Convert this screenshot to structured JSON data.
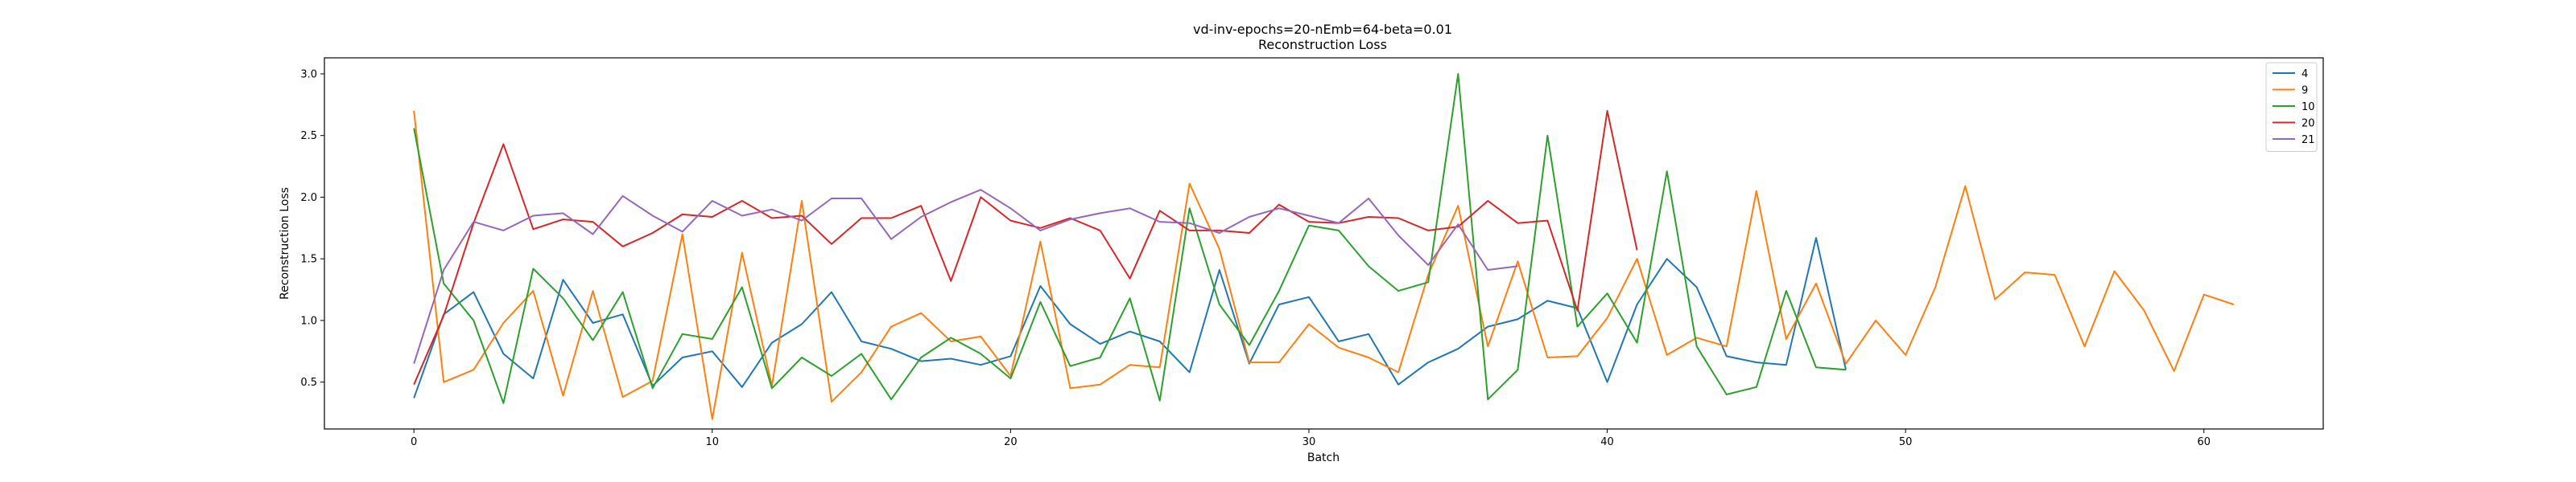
{
  "chart_data": {
    "type": "line",
    "title": "vd-inv-epochs=20-nEmb=64-beta=0.01",
    "subtitle": "Reconstruction Loss",
    "xlabel": "Batch",
    "ylabel": "Reconstruction Loss",
    "xlim": [
      -3,
      64
    ],
    "ylim": [
      0.12,
      3.13
    ],
    "xticks": [
      0,
      10,
      20,
      30,
      40,
      50,
      60
    ],
    "yticks": [
      0.5,
      1.0,
      1.5,
      2.0,
      2.5,
      3.0
    ],
    "ytick_labels": [
      "0.5",
      "1.0",
      "1.5",
      "2.0",
      "2.5",
      "3.0"
    ],
    "grid": false,
    "legend_position": "top-right",
    "series": [
      {
        "name": "4",
        "color": "#1f77b4",
        "x": [
          0,
          1,
          2,
          3,
          4,
          5,
          6,
          7,
          8,
          9,
          10,
          11,
          12,
          13,
          14,
          15,
          16,
          17,
          18,
          19,
          20,
          21,
          22,
          23,
          24,
          25,
          26,
          27,
          28,
          29,
          30,
          31,
          32,
          33,
          34,
          35,
          36,
          37,
          38,
          39,
          40,
          41,
          42,
          43,
          44,
          45,
          46,
          47,
          48
        ],
        "y": [
          0.37,
          1.05,
          1.23,
          0.73,
          0.53,
          1.33,
          0.98,
          1.05,
          0.47,
          0.7,
          0.75,
          0.46,
          0.82,
          0.97,
          1.23,
          0.83,
          0.77,
          0.67,
          0.69,
          0.64,
          0.71,
          1.28,
          0.97,
          0.81,
          0.91,
          0.83,
          0.58,
          1.41,
          0.65,
          1.13,
          1.19,
          0.83,
          0.89,
          0.48,
          0.66,
          0.77,
          0.95,
          1.01,
          1.16,
          1.1,
          0.5,
          1.13,
          1.5,
          1.27,
          0.71,
          0.66,
          0.64,
          1.67,
          0.6
        ]
      },
      {
        "name": "9",
        "color": "#ff7f0e",
        "x": [
          0,
          1,
          2,
          3,
          4,
          5,
          6,
          7,
          8,
          9,
          10,
          11,
          12,
          13,
          14,
          15,
          16,
          17,
          18,
          19,
          20,
          21,
          22,
          23,
          24,
          25,
          26,
          27,
          28,
          29,
          30,
          31,
          32,
          33,
          34,
          35,
          36,
          37,
          38,
          39,
          40,
          41,
          42,
          43,
          44,
          45,
          46,
          47,
          48,
          49,
          50,
          51,
          52,
          53,
          54,
          55,
          56,
          57,
          58,
          59,
          60,
          61
        ],
        "y": [
          2.7,
          0.5,
          0.6,
          0.98,
          1.24,
          0.39,
          1.24,
          0.38,
          0.51,
          1.7,
          0.2,
          1.55,
          0.47,
          1.97,
          0.34,
          0.58,
          0.95,
          1.06,
          0.83,
          0.87,
          0.55,
          1.64,
          0.45,
          0.48,
          0.64,
          0.62,
          2.11,
          1.58,
          0.66,
          0.66,
          0.97,
          0.78,
          0.7,
          0.58,
          1.37,
          1.93,
          0.79,
          1.48,
          0.7,
          0.71,
          1.02,
          1.5,
          0.72,
          0.86,
          0.79,
          2.05,
          0.85,
          1.3,
          0.65,
          1.0,
          0.72,
          1.27,
          2.09,
          1.17,
          1.39,
          1.37,
          0.79,
          1.4,
          1.08,
          0.59,
          1.21,
          1.13
        ]
      },
      {
        "name": "10",
        "color": "#2ca02c",
        "x": [
          0,
          1,
          2,
          3,
          4,
          5,
          6,
          7,
          8,
          9,
          10,
          11,
          12,
          13,
          14,
          15,
          16,
          17,
          18,
          19,
          20,
          21,
          22,
          23,
          24,
          25,
          26,
          27,
          28,
          29,
          30,
          31,
          32,
          33,
          34,
          35,
          36,
          37,
          38,
          39,
          40,
          41,
          42,
          43,
          44,
          45,
          46,
          47,
          48
        ],
        "y": [
          2.56,
          1.3,
          1.0,
          0.33,
          1.42,
          1.18,
          0.84,
          1.23,
          0.45,
          0.89,
          0.85,
          1.27,
          0.45,
          0.7,
          0.55,
          0.73,
          0.36,
          0.7,
          0.86,
          0.73,
          0.53,
          1.15,
          0.63,
          0.7,
          1.18,
          0.35,
          1.91,
          1.13,
          0.8,
          1.24,
          1.77,
          1.73,
          1.44,
          1.24,
          1.31,
          3.0,
          0.36,
          0.6,
          2.5,
          0.95,
          1.22,
          0.82,
          2.21,
          0.79,
          0.4,
          0.46,
          1.24,
          0.62,
          0.6
        ]
      },
      {
        "name": "20",
        "color": "#d62728",
        "x": [
          0,
          1,
          2,
          3,
          4,
          5,
          6,
          7,
          8,
          9,
          10,
          11,
          12,
          13,
          14,
          15,
          16,
          17,
          18,
          19,
          20,
          21,
          22,
          23,
          24,
          25,
          26,
          27,
          28,
          29,
          30,
          31,
          32,
          33,
          34,
          35,
          36,
          37,
          38,
          39,
          40,
          41
        ],
        "y": [
          0.48,
          1.04,
          1.79,
          2.43,
          1.74,
          1.82,
          1.8,
          1.6,
          1.71,
          1.86,
          1.84,
          1.97,
          1.83,
          1.85,
          1.62,
          1.83,
          1.83,
          1.93,
          1.32,
          2.0,
          1.81,
          1.75,
          1.83,
          1.73,
          1.34,
          1.89,
          1.73,
          1.73,
          1.71,
          1.94,
          1.8,
          1.79,
          1.84,
          1.83,
          1.73,
          1.76,
          1.97,
          1.79,
          1.81,
          1.08,
          2.7,
          1.57
        ]
      },
      {
        "name": "21",
        "color": "#9467bd",
        "x": [
          0,
          1,
          2,
          3,
          4,
          5,
          6,
          7,
          8,
          9,
          10,
          11,
          12,
          13,
          14,
          15,
          16,
          17,
          18,
          19,
          20,
          21,
          22,
          23,
          24,
          25,
          26,
          27,
          28,
          29,
          30,
          31,
          32,
          33,
          34,
          35,
          36,
          37
        ],
        "y": [
          0.65,
          1.41,
          1.8,
          1.73,
          1.85,
          1.87,
          1.7,
          2.01,
          1.85,
          1.72,
          1.97,
          1.85,
          1.9,
          1.81,
          1.99,
          1.99,
          1.66,
          1.84,
          1.96,
          2.06,
          1.91,
          1.73,
          1.82,
          1.87,
          1.91,
          1.8,
          1.79,
          1.71,
          1.84,
          1.91,
          1.85,
          1.79,
          1.99,
          1.69,
          1.45,
          1.78,
          1.41,
          1.44
        ]
      }
    ]
  }
}
